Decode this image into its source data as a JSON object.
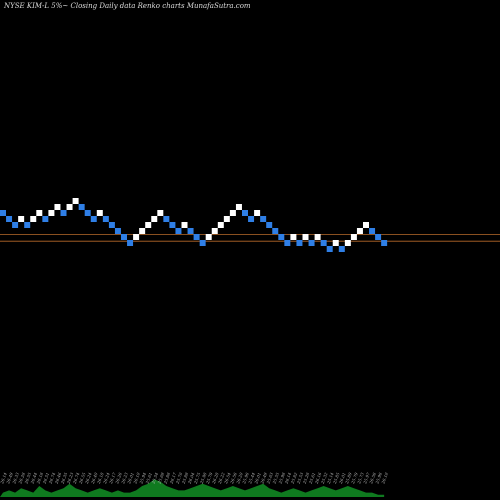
{
  "header": {
    "title": "NYSE KIM-L  5%~  Closing Daily data  Renko  charts MunafaSutra.com"
  },
  "colors": {
    "background": "#000000",
    "up_brick": "#ffffff",
    "down_brick": "#2f7fe6",
    "reference_line": "#b86a2a",
    "volume": "#0f7a1f"
  },
  "chart_data": {
    "type": "renko",
    "grid": false,
    "legend": "none",
    "bricks": [
      {
        "level": 23.0,
        "dir": "down"
      },
      {
        "level": 22.0,
        "dir": "down"
      },
      {
        "level": 21.0,
        "dir": "down"
      },
      {
        "level": 22.0,
        "dir": "up"
      },
      {
        "level": 21.0,
        "dir": "down"
      },
      {
        "level": 22.0,
        "dir": "up"
      },
      {
        "level": 23.0,
        "dir": "up"
      },
      {
        "level": 22.0,
        "dir": "down"
      },
      {
        "level": 23.0,
        "dir": "up"
      },
      {
        "level": 24.0,
        "dir": "up"
      },
      {
        "level": 23.0,
        "dir": "down"
      },
      {
        "level": 24.0,
        "dir": "up"
      },
      {
        "level": 25.0,
        "dir": "up"
      },
      {
        "level": 24.0,
        "dir": "down"
      },
      {
        "level": 23.0,
        "dir": "down"
      },
      {
        "level": 22.0,
        "dir": "down"
      },
      {
        "level": 23.0,
        "dir": "up"
      },
      {
        "level": 22.0,
        "dir": "down"
      },
      {
        "level": 21.0,
        "dir": "down"
      },
      {
        "level": 20.0,
        "dir": "down"
      },
      {
        "level": 19.0,
        "dir": "down"
      },
      {
        "level": 18.0,
        "dir": "down"
      },
      {
        "level": 19.0,
        "dir": "up"
      },
      {
        "level": 20.0,
        "dir": "up"
      },
      {
        "level": 21.0,
        "dir": "up"
      },
      {
        "level": 22.0,
        "dir": "up"
      },
      {
        "level": 23.0,
        "dir": "up"
      },
      {
        "level": 22.0,
        "dir": "down"
      },
      {
        "level": 21.0,
        "dir": "down"
      },
      {
        "level": 20.0,
        "dir": "down"
      },
      {
        "level": 21.0,
        "dir": "up"
      },
      {
        "level": 20.0,
        "dir": "down"
      },
      {
        "level": 19.0,
        "dir": "down"
      },
      {
        "level": 18.0,
        "dir": "down"
      },
      {
        "level": 19.0,
        "dir": "up"
      },
      {
        "level": 20.0,
        "dir": "up"
      },
      {
        "level": 21.0,
        "dir": "up"
      },
      {
        "level": 22.0,
        "dir": "up"
      },
      {
        "level": 23.0,
        "dir": "up"
      },
      {
        "level": 24.0,
        "dir": "up"
      },
      {
        "level": 23.0,
        "dir": "down"
      },
      {
        "level": 22.0,
        "dir": "down"
      },
      {
        "level": 23.0,
        "dir": "up"
      },
      {
        "level": 22.0,
        "dir": "down"
      },
      {
        "level": 21.0,
        "dir": "down"
      },
      {
        "level": 20.0,
        "dir": "down"
      },
      {
        "level": 19.0,
        "dir": "down"
      },
      {
        "level": 18.0,
        "dir": "down"
      },
      {
        "level": 19.0,
        "dir": "up"
      },
      {
        "level": 18.0,
        "dir": "down"
      },
      {
        "level": 19.0,
        "dir": "up"
      },
      {
        "level": 18.0,
        "dir": "down"
      },
      {
        "level": 19.0,
        "dir": "up"
      },
      {
        "level": 18.0,
        "dir": "down"
      },
      {
        "level": 17.0,
        "dir": "down"
      },
      {
        "level": 18.0,
        "dir": "up"
      },
      {
        "level": 17.0,
        "dir": "down"
      },
      {
        "level": 18.0,
        "dir": "up"
      },
      {
        "level": 19.0,
        "dir": "up"
      },
      {
        "level": 20.0,
        "dir": "up"
      },
      {
        "level": 21.0,
        "dir": "up"
      },
      {
        "level": 20.0,
        "dir": "down"
      },
      {
        "level": 19.0,
        "dir": "down"
      },
      {
        "level": 18.0,
        "dir": "down"
      }
    ],
    "reference_lines": [
      19.4,
      18.3
    ],
    "volume": [
      2,
      3,
      2,
      4,
      3,
      2,
      5,
      3,
      2,
      3,
      4,
      6,
      4,
      3,
      2,
      3,
      4,
      3,
      2,
      3,
      2,
      2,
      3,
      5,
      6,
      8,
      7,
      5,
      4,
      3,
      3,
      4,
      5,
      6,
      5,
      4,
      3,
      4,
      5,
      4,
      3,
      4,
      5,
      6,
      4,
      3,
      2,
      3,
      4,
      3,
      2,
      3,
      4,
      5,
      4,
      3,
      4,
      5,
      4,
      3,
      2,
      2,
      1,
      1
    ],
    "date_labels": [
      "26.14",
      "26.49",
      "26.33",
      "26.28",
      "26.55",
      "26.44",
      "26.18",
      "26.51",
      "26.74",
      "26.46",
      "26.35",
      "26.23",
      "26.74",
      "26.55",
      "26.24",
      "26.40",
      "26.18",
      "26.24",
      "26.17",
      "26.26",
      "26.23",
      "26.01",
      "26.10",
      "25.94",
      "25.61",
      "25.54",
      "25.69",
      "25.88",
      "26.17",
      "25.70",
      "25.89",
      "26.04",
      "25.75",
      "25.98",
      "25.79",
      "26.28",
      "26.22",
      "26.54",
      "26.56",
      "26.20",
      "25.96",
      "25.44",
      "26.01",
      "26.49",
      "25.63",
      "25.55",
      "25.98",
      "26.14",
      "25.82",
      "25.53",
      "25.28",
      "25.61",
      "26.16",
      "25.32",
      "25.14",
      "25.85",
      "26.01",
      "25.89",
      "25.79",
      "25.73",
      "25.97",
      "26.56",
      "25.96",
      "26.10"
    ]
  }
}
